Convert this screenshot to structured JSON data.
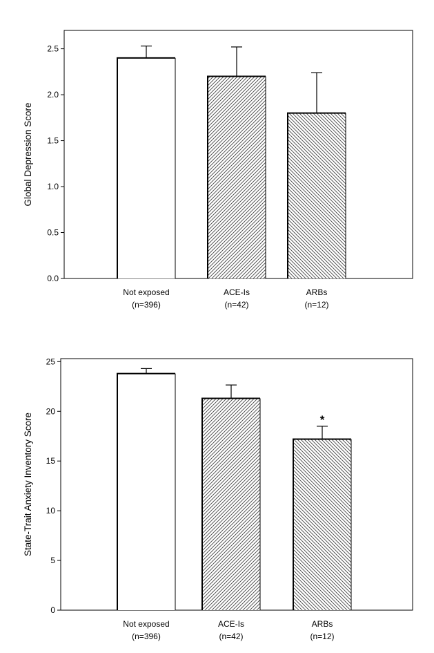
{
  "chart_data": [
    {
      "type": "bar",
      "categories": [
        "Not exposed",
        "ACE-Is",
        "ARBs"
      ],
      "category_sublabels": [
        "(n=396)",
        "(n=42)",
        "(n=12)"
      ],
      "values": [
        2.4,
        2.2,
        1.8
      ],
      "error_upper": [
        2.53,
        2.52,
        2.24
      ],
      "bar_fill": [
        "none",
        "hatch-forward",
        "hatch-back"
      ],
      "annotations": [
        "",
        "",
        ""
      ],
      "title": "",
      "xlabel": "",
      "ylabel": "Global Depression Score",
      "ylim": [
        0,
        2.7
      ],
      "yticks": [
        0.0,
        0.5,
        1.0,
        1.5,
        2.0,
        2.5
      ],
      "ytick_labels": [
        "0.0",
        "0.5",
        "1.0",
        "1.5",
        "2.0",
        "2.5"
      ],
      "grid": false,
      "legend": "none"
    },
    {
      "type": "bar",
      "categories": [
        "Not exposed",
        "ACE-Is",
        "ARBs"
      ],
      "category_sublabels": [
        "(n=396)",
        "(n=42)",
        "(n=12)"
      ],
      "values": [
        23.8,
        21.3,
        17.2
      ],
      "error_upper": [
        24.3,
        22.65,
        18.5
      ],
      "bar_fill": [
        "none",
        "hatch-forward",
        "hatch-back"
      ],
      "annotations": [
        "",
        "",
        "*"
      ],
      "title": "",
      "xlabel": "",
      "ylabel": "State-Trait Anxiety Inventory Score",
      "ylim": [
        0,
        25.3
      ],
      "yticks": [
        0,
        5,
        10,
        15,
        20,
        25
      ],
      "ytick_labels": [
        "0",
        "5",
        "10",
        "15",
        "20",
        "25"
      ],
      "grid": false,
      "legend": "none"
    }
  ]
}
